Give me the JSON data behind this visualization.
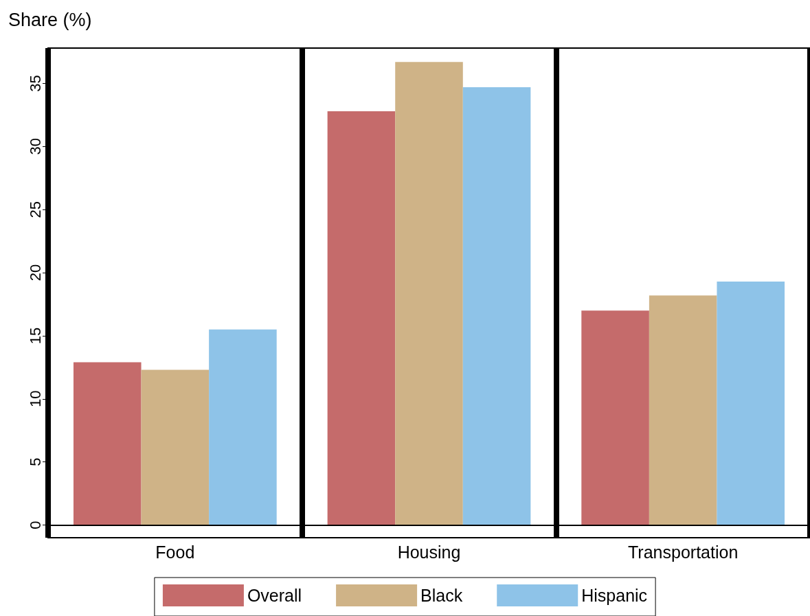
{
  "chart_data": {
    "type": "bar",
    "ylabel": "Share (%)",
    "categories": [
      "Food",
      "Housing",
      "Transportation"
    ],
    "series": [
      {
        "name": "Overall",
        "color": "#c56b6b",
        "values": [
          12.9,
          32.8,
          17.0
        ]
      },
      {
        "name": "Black",
        "color": "#cfb387",
        "values": [
          12.3,
          36.7,
          18.2
        ]
      },
      {
        "name": "Hispanic",
        "color": "#8ec3e8",
        "values": [
          15.5,
          34.7,
          19.3
        ]
      }
    ],
    "ylim": [
      -1,
      37.8
    ],
    "yticks": [
      0,
      5,
      10,
      15,
      20,
      25,
      30,
      35
    ],
    "ref_lines": [
      {
        "axis": "y",
        "value": 0,
        "color": "#000000"
      }
    ],
    "grid": "x",
    "legend": "bottom"
  }
}
